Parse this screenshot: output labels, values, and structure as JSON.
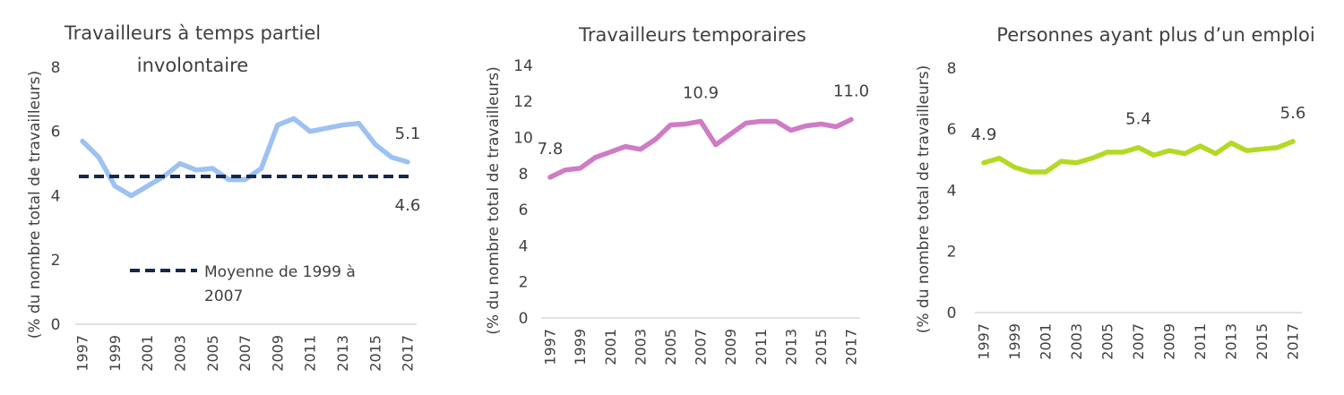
{
  "chart_data": [
    {
      "type": "line",
      "title": "Travailleurs à temps partiel involontaire",
      "title_lines": [
        "Travailleurs à temps partiel",
        "involontaire"
      ],
      "ylabel": "(% du nombre total de travailleurs)",
      "ylim": [
        0,
        8
      ],
      "yticks": [
        0,
        2,
        4,
        6,
        8
      ],
      "x": [
        1997,
        1998,
        1999,
        2000,
        2001,
        2002,
        2003,
        2004,
        2005,
        2006,
        2007,
        2008,
        2009,
        2010,
        2011,
        2012,
        2013,
        2014,
        2015,
        2016,
        2017
      ],
      "xtick_labels": [
        "1997",
        "1999",
        "2001",
        "2003",
        "2005",
        "2007",
        "2009",
        "2011",
        "2013",
        "2015",
        "2017"
      ],
      "grid": false,
      "series": [
        {
          "name": "Travailleurs à temps partiel involontaire",
          "color": "#9dc1f2",
          "values": [
            5.7,
            5.2,
            4.3,
            4.0,
            4.3,
            4.6,
            5.0,
            4.8,
            4.85,
            4.5,
            4.5,
            4.85,
            6.2,
            6.4,
            6.0,
            6.1,
            6.2,
            6.25,
            5.6,
            5.2,
            5.05
          ]
        },
        {
          "name": "Moyenne de 1999 à 2007",
          "color": "#16284a",
          "dashed": true,
          "constant": 4.6
        }
      ],
      "legend": {
        "label_lines": [
          "Moyenne de 1999 à",
          "2007"
        ],
        "placement": "bottom-center"
      },
      "annotations": [
        {
          "text": "5.1",
          "x": 2017,
          "y": 5.05,
          "pos": "above"
        },
        {
          "text": "4.6",
          "x": 2017,
          "y": 4.6,
          "pos": "below"
        }
      ]
    },
    {
      "type": "line",
      "title": "Travailleurs temporaires",
      "title_lines": [
        "Travailleurs temporaires"
      ],
      "ylabel": "(% du nombre total de travailleurs)",
      "ylim": [
        0,
        14
      ],
      "yticks": [
        0,
        2,
        4,
        6,
        8,
        10,
        12,
        14
      ],
      "x": [
        1997,
        1998,
        1999,
        2000,
        2001,
        2002,
        2003,
        2004,
        2005,
        2006,
        2007,
        2008,
        2009,
        2010,
        2011,
        2012,
        2013,
        2014,
        2015,
        2016,
        2017
      ],
      "xtick_labels": [
        "1997",
        "1999",
        "2001",
        "2003",
        "2005",
        "2007",
        "2009",
        "2011",
        "2013",
        "2015",
        "2017"
      ],
      "grid": false,
      "series": [
        {
          "name": "Travailleurs temporaires",
          "color": "#cf7bc5",
          "values": [
            7.8,
            8.2,
            8.3,
            8.9,
            9.2,
            9.5,
            9.35,
            9.9,
            10.7,
            10.75,
            10.9,
            9.6,
            10.2,
            10.8,
            10.9,
            10.9,
            10.4,
            10.65,
            10.75,
            10.6,
            11.0
          ]
        }
      ],
      "annotations": [
        {
          "text": "7.8",
          "x": 1997,
          "y": 7.8,
          "pos": "above"
        },
        {
          "text": "10.9",
          "x": 2007,
          "y": 10.9,
          "pos": "above"
        },
        {
          "text": "11.0",
          "x": 2017,
          "y": 11.0,
          "pos": "above"
        }
      ]
    },
    {
      "type": "line",
      "title": "Personnes ayant plus d’un emploi",
      "title_lines": [
        "Personnes ayant plus d’un emploi"
      ],
      "ylabel": "(% du nombre total de travailleurs)",
      "ylim": [
        0,
        8
      ],
      "yticks": [
        0,
        2,
        4,
        6,
        8
      ],
      "x": [
        1997,
        1998,
        1999,
        2000,
        2001,
        2002,
        2003,
        2004,
        2005,
        2006,
        2007,
        2008,
        2009,
        2010,
        2011,
        2012,
        2013,
        2014,
        2015,
        2016,
        2017
      ],
      "xtick_labels": [
        "1997",
        "1999",
        "2001",
        "2003",
        "2005",
        "2007",
        "2009",
        "2011",
        "2013",
        "2015",
        "2017"
      ],
      "grid": false,
      "series": [
        {
          "name": "Personnes ayant plus d’un emploi",
          "color": "#b3d925",
          "values": [
            4.9,
            5.05,
            4.75,
            4.6,
            4.6,
            4.95,
            4.9,
            5.05,
            5.25,
            5.25,
            5.4,
            5.15,
            5.3,
            5.2,
            5.45,
            5.2,
            5.55,
            5.3,
            5.35,
            5.4,
            5.6
          ]
        }
      ],
      "annotations": [
        {
          "text": "4.9",
          "x": 1997,
          "y": 4.9,
          "pos": "above"
        },
        {
          "text": "5.4",
          "x": 2007,
          "y": 5.4,
          "pos": "above"
        },
        {
          "text": "5.6",
          "x": 2017,
          "y": 5.6,
          "pos": "above"
        }
      ]
    }
  ]
}
